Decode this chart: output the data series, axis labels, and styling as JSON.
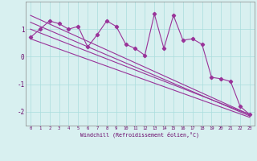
{
  "xlabel": "Windchill (Refroidissement éolien,°C)",
  "x_data": [
    0,
    1,
    2,
    3,
    4,
    5,
    6,
    7,
    8,
    9,
    10,
    11,
    12,
    13,
    14,
    15,
    16,
    17,
    18,
    19,
    20,
    21,
    22,
    23
  ],
  "y_main": [
    0.7,
    1.0,
    1.3,
    1.2,
    1.0,
    1.1,
    0.35,
    0.8,
    1.3,
    1.1,
    0.45,
    0.3,
    0.05,
    1.55,
    0.3,
    1.5,
    0.6,
    0.65,
    0.45,
    -0.75,
    -0.8,
    -0.9,
    -1.8,
    -2.1
  ],
  "trend_lines": [
    {
      "x0": 0,
      "y0": 0.65,
      "x1": 23,
      "y1": -2.2
    },
    {
      "x0": 0,
      "y0": 1.0,
      "x1": 23,
      "y1": -2.1
    },
    {
      "x0": 0,
      "y0": 1.25,
      "x1": 23,
      "y1": -2.15
    },
    {
      "x0": 0,
      "y0": 1.5,
      "x1": 23,
      "y1": -2.1
    }
  ],
  "line_color": "#993399",
  "bg_color": "#d8f0f0",
  "grid_color": "#aadddd",
  "axis_color": "#888888",
  "text_color": "#660066",
  "ylim": [
    -2.5,
    2.0
  ],
  "xlim": [
    -0.5,
    23.5
  ],
  "yticks": [
    -2,
    -1,
    0,
    1
  ],
  "xticks": [
    0,
    1,
    2,
    3,
    4,
    5,
    6,
    7,
    8,
    9,
    10,
    11,
    12,
    13,
    14,
    15,
    16,
    17,
    18,
    19,
    20,
    21,
    22,
    23
  ]
}
